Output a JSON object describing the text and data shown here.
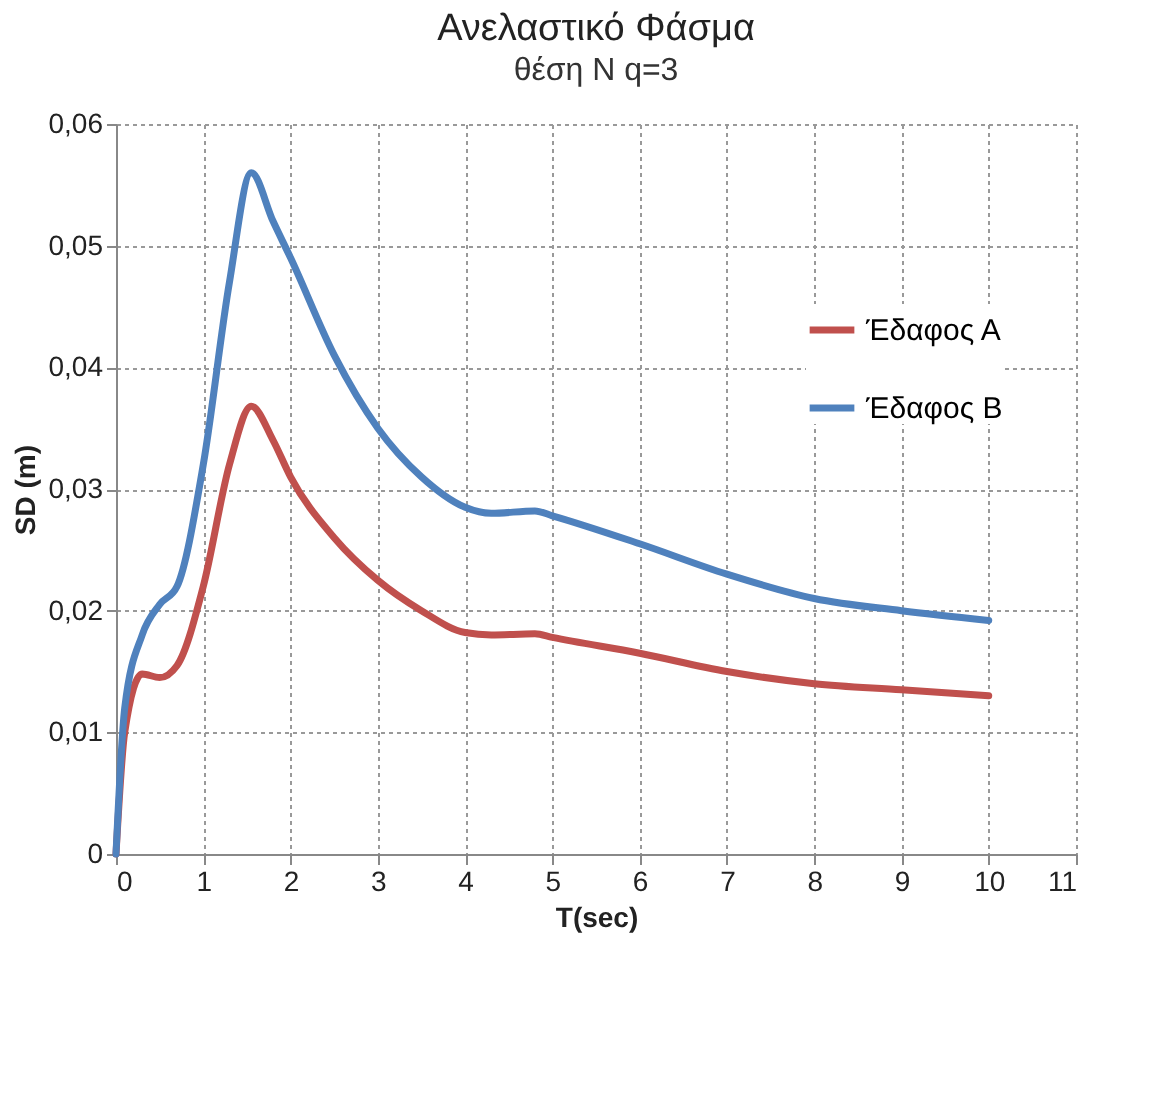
{
  "chart_data": {
    "type": "line",
    "title": "Ανελαστικό Φάσμα",
    "subtitle": "θέση N q=3",
    "xlabel": "T(sec)",
    "ylabel": "SD (m)",
    "x": [
      0,
      0.1,
      0.3,
      0.5,
      0.7,
      1.0,
      1.3,
      1.55,
      1.8,
      2,
      2.5,
      3,
      3.5,
      4,
      4.3,
      4.8,
      5,
      6,
      7,
      8,
      9,
      10
    ],
    "series": [
      {
        "name": "Έδαφος Α",
        "color": "#c0504d",
        "values": [
          0,
          0.01,
          0.0148,
          0.0145,
          0.0155,
          0.022,
          0.032,
          0.0368,
          0.034,
          0.031,
          0.026,
          0.0225,
          0.02,
          0.0182,
          0.018,
          0.0181,
          0.0178,
          0.0165,
          0.015,
          0.014,
          0.0135,
          0.013
        ]
      },
      {
        "name": "Έδαφος Β",
        "color": "#4f81bd",
        "values": [
          0,
          0.012,
          0.018,
          0.0205,
          0.022,
          0.032,
          0.047,
          0.056,
          0.052,
          0.049,
          0.041,
          0.035,
          0.031,
          0.0285,
          0.028,
          0.0282,
          0.0278,
          0.0255,
          0.023,
          0.021,
          0.02,
          0.0192
        ]
      }
    ],
    "xlim": [
      0,
      11
    ],
    "xticks": [
      0,
      1,
      2,
      3,
      4,
      5,
      6,
      7,
      8,
      9,
      10,
      11
    ],
    "ylim": [
      0,
      0.06
    ],
    "yticks": [
      0,
      {
        "value": 0.01,
        "label": "0,01"
      },
      {
        "value": 0.02,
        "label": "0,02"
      },
      {
        "value": 0.03,
        "label": "0,03"
      },
      {
        "value": 0.04,
        "label": "0,04"
      },
      {
        "value": 0.05,
        "label": "0,05"
      },
      {
        "value": 0.06,
        "label": "0,06"
      }
    ],
    "grid": true,
    "legend": "right",
    "marker": "none",
    "line_style": "solid"
  }
}
